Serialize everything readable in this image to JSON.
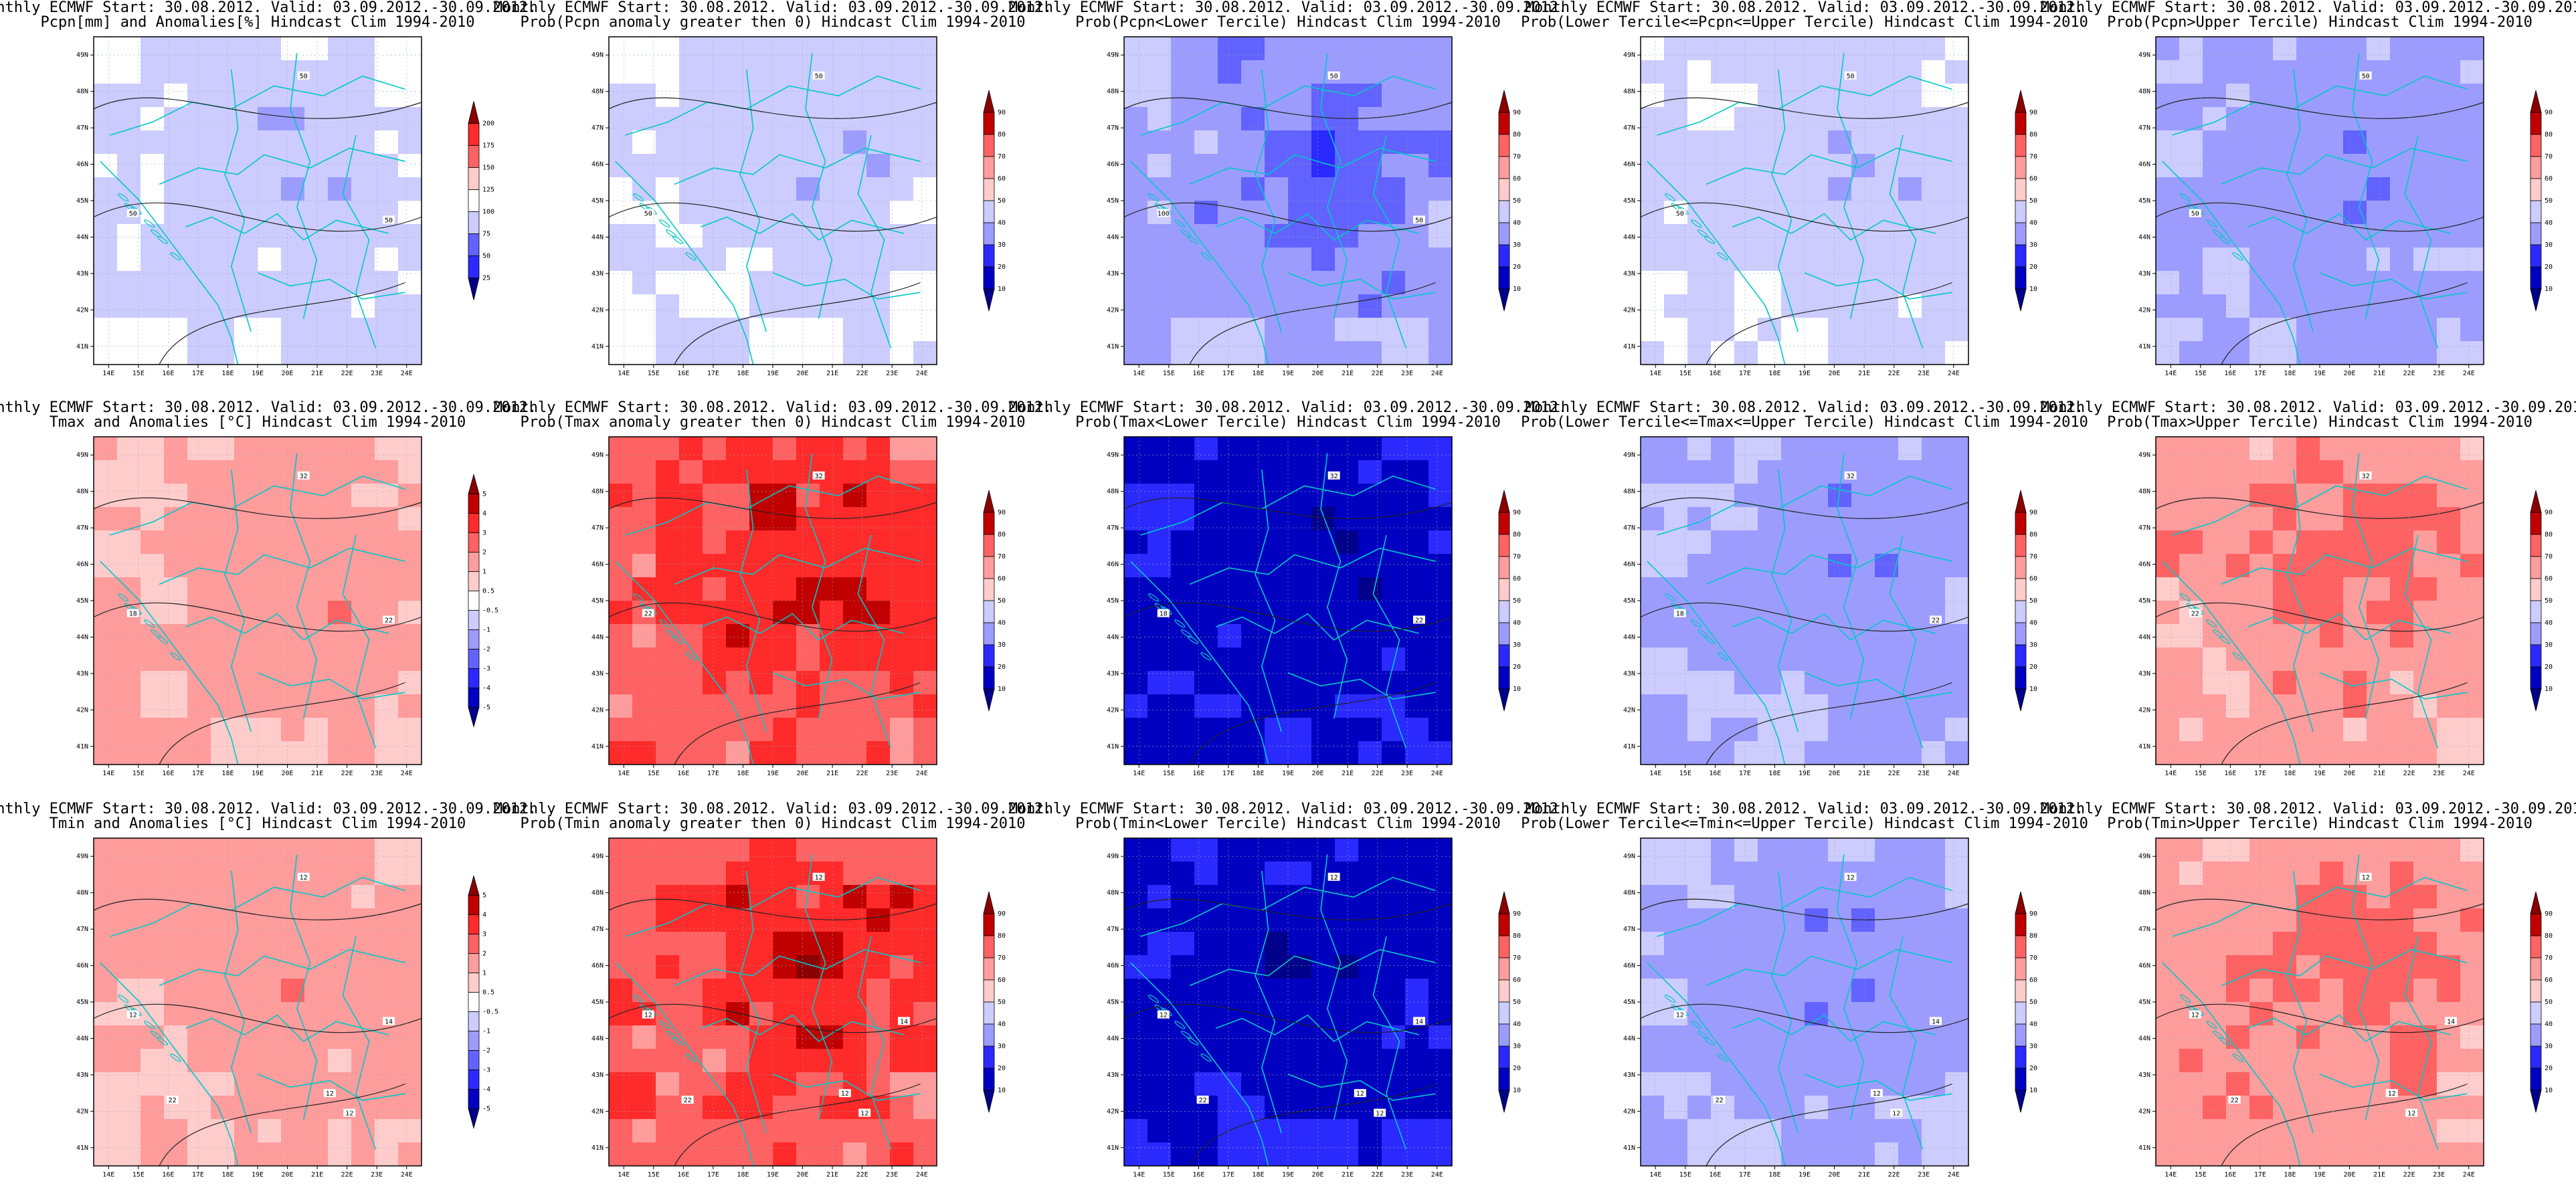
{
  "title_line1": "Monthly ECMWF Start: 30.08.2012. Valid: 03.09.2012.-30.09.2012.",
  "lon_ticks": [
    "14E",
    "15E",
    "16E",
    "17E",
    "18E",
    "19E",
    "20E",
    "21E",
    "22E",
    "23E",
    "24E"
  ],
  "lat_ticks": [
    "49N",
    "48N",
    "47N",
    "46N",
    "45N",
    "44N",
    "43N",
    "42N",
    "41N"
  ],
  "colorbars": {
    "pcpn_anom": [
      "200",
      "175",
      "150",
      "125",
      "100",
      "75",
      "50",
      "25"
    ],
    "prob": [
      "90",
      "80",
      "70",
      "60",
      "50",
      "40",
      "30",
      "20",
      "10"
    ],
    "temp_anom": [
      "5",
      "4",
      "3",
      "2",
      "1",
      "0.5",
      "-0.5",
      "-1",
      "-2",
      "-3",
      "-4",
      "-5"
    ]
  },
  "palettes": {
    "reds": [
      "#8b0000",
      "#c00000",
      "#ff2a2a",
      "#ff6262",
      "#ff9c9c",
      "#ffcccc"
    ],
    "neutral": "#ffffff",
    "blues": [
      "#ccccff",
      "#9c9cff",
      "#6262ff",
      "#2a2aff",
      "#0000c0",
      "#00008b"
    ],
    "border": "#00c8c8",
    "contour": "#222222"
  },
  "panels": [
    {
      "row": 0,
      "col": 0,
      "title_line2": "Pcpn[mm] and Anomalies[%] Hindcast Clim 1994-2010",
      "colorbar": "pcpn_anom",
      "base": "blue1",
      "contour_labels": [
        "50",
        "50",
        "50"
      ]
    },
    {
      "row": 0,
      "col": 1,
      "title_line2": "Prob(Pcpn anomaly greater then 0) Hindcast Clim 1994-2010",
      "colorbar": "prob",
      "base": "blue1w",
      "contour_labels": [
        "50",
        "50"
      ]
    },
    {
      "row": 0,
      "col": 2,
      "title_line2": "Prob(Pcpn<Lower Tercile) Hindcast Clim 1994-2010",
      "colorbar": "prob",
      "base": "blue3",
      "contour_labels": [
        "50",
        "100",
        "50"
      ]
    },
    {
      "row": 0,
      "col": 3,
      "title_line2": "Prob(Lower Tercile<=Pcpn<=Upper Tercile) Hindcast Clim 1994-2010",
      "colorbar": "prob",
      "base": "blue1",
      "contour_labels": [
        "50",
        "50"
      ]
    },
    {
      "row": 0,
      "col": 4,
      "title_line2": "Prob(Pcpn>Upper Tercile) Hindcast Clim 1994-2010",
      "colorbar": "prob",
      "base": "blue2",
      "contour_labels": [
        "50",
        "50"
      ]
    },
    {
      "row": 1,
      "col": 0,
      "title_line2": "Tmax and Anomalies [°C] Hindcast Clim 1994-2010",
      "colorbar": "temp_anom",
      "base": "red1",
      "contour_labels": [
        "32",
        "18",
        "22"
      ]
    },
    {
      "row": 1,
      "col": 1,
      "title_line2": "Prob(Tmax anomaly greater then 0) Hindcast Clim 1994-2010",
      "colorbar": "prob",
      "base": "red3",
      "contour_labels": [
        "32",
        "22"
      ]
    },
    {
      "row": 1,
      "col": 2,
      "title_line2": "Prob(Tmax<Lower Tercile) Hindcast Clim 1994-2010",
      "colorbar": "prob",
      "base": "blue5",
      "contour_labels": [
        "32",
        "18",
        "22"
      ]
    },
    {
      "row": 1,
      "col": 3,
      "title_line2": "Prob(Lower Tercile<=Tmax<=Upper Tercile) Hindcast Clim 1994-2010",
      "colorbar": "prob",
      "base": "blue2",
      "contour_labels": [
        "32",
        "18",
        "22"
      ]
    },
    {
      "row": 1,
      "col": 4,
      "title_line2": "Prob(Tmax>Upper Tercile) Hindcast Clim 1994-2010",
      "colorbar": "prob",
      "base": "red2",
      "contour_labels": [
        "32",
        "22"
      ]
    },
    {
      "row": 2,
      "col": 0,
      "title_line2": "Tmin and Anomalies [°C] Hindcast Clim 1994-2010",
      "colorbar": "temp_anom",
      "base": "red1",
      "contour_labels": [
        "12",
        "12",
        "14",
        "12",
        "12",
        "22"
      ]
    },
    {
      "row": 2,
      "col": 1,
      "title_line2": "Prob(Tmin anomaly greater then 0) Hindcast Clim 1994-2010",
      "colorbar": "prob",
      "base": "red3",
      "contour_labels": [
        "12",
        "12",
        "14",
        "12",
        "12",
        "22"
      ]
    },
    {
      "row": 2,
      "col": 2,
      "title_line2": "Prob(Tmin<Lower Tercile) Hindcast Clim 1994-2010",
      "colorbar": "prob",
      "base": "blue5",
      "contour_labels": [
        "12",
        "12",
        "14",
        "12",
        "12",
        "22"
      ]
    },
    {
      "row": 2,
      "col": 3,
      "title_line2": "Prob(Lower Tercile<=Tmin<=Upper Tercile) Hindcast Clim 1994-2010",
      "colorbar": "prob",
      "base": "blue2",
      "contour_labels": [
        "12",
        "12",
        "14",
        "12",
        "12",
        "22"
      ]
    },
    {
      "row": 2,
      "col": 4,
      "title_line2": "Prob(Tmin>Upper Tercile) Hindcast Clim 1994-2010",
      "colorbar": "prob",
      "base": "red2",
      "contour_labels": [
        "12",
        "12",
        "14",
        "12",
        "12",
        "22"
      ]
    }
  ]
}
